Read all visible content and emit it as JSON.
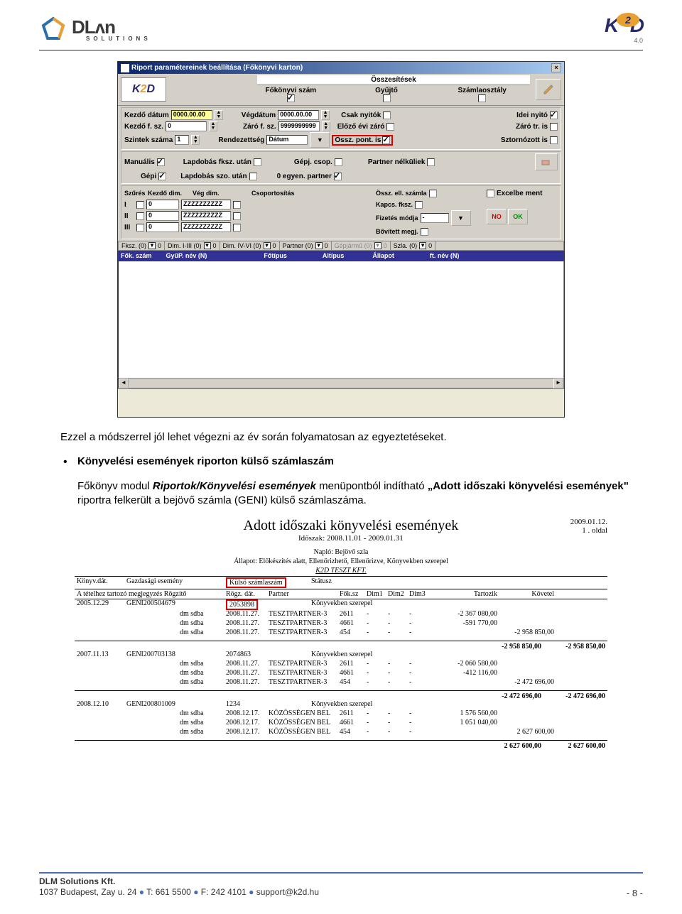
{
  "header": {
    "dlm_main": "DLʌn",
    "dlm_sub": "SOLUTIONS",
    "k2d": "K2D",
    "k2d_ver": "4.0"
  },
  "dialog": {
    "title": "Riport paramétereinek beállítása  (Főkönyvi karton)",
    "summary_title": "Összesítések",
    "col1": "Főkönyvi szám",
    "col2": "Gyűjtő",
    "col3": "Számlaosztály",
    "row1": {
      "l_kezdo_datum": "Kezdő dátum",
      "v_kezdo_datum": "0000.00.00",
      "l_vegdatum": "Végdátum",
      "v_vegdatum": "0000.00.00",
      "l_csak_nyitok": "Csak nyitók",
      "l_idei_nyito": "Idei nyitó"
    },
    "row2": {
      "l_kezdo_fsz": "Kezdő f. sz.",
      "v_kezdo_fsz": "0",
      "l_zaro_fsz": "Záró f. sz.",
      "v_zaro_fsz": "9999999999",
      "l_elozo_evi": "Előző évi záró",
      "l_zaro_tris": "Záró tr. is"
    },
    "row3": {
      "l_szintek": "Szintek száma",
      "v_szintek": "1",
      "l_rendezett": "Rendezettség",
      "v_rendezett": "Dátum",
      "l_ossz_pont": "Össz. pont. is",
      "l_sztornozott": "Sztornózott is"
    },
    "row4": {
      "l_manualis": "Manuális",
      "l_lapdobas_fksz": "Lapdobás fksz. után",
      "l_gepj_csop": "Gépj. csop.",
      "l_partner_nelk": "Partner nélküliek"
    },
    "row5": {
      "l_gepi": "Gépi",
      "l_lapdobas_szo": "Lapdobás szo. után",
      "l_egyen_partner": "0 egyen. partner"
    },
    "filter_header": {
      "c1": "Szűrés",
      "c2": "Kezdő dim.",
      "c3": "Vég dim.",
      "c4": "Csoportosítás",
      "c5": "Össz. ell. számla",
      "c6": "Kapcs. fksz.",
      "c7": "Fizetés módja",
      "c8": "Bővített megj."
    },
    "filter_rows": {
      "r1": "I",
      "r2": "II",
      "r3": "III",
      "zero": "0",
      "zzz": "ZZZZZZZZZZ"
    },
    "excelbe": "Excelbe ment",
    "fiz_moda": "-",
    "no": "NO",
    "ok": "OK",
    "collapse": {
      "c1": "Fksz. (0)",
      "c2": "Dim. I-III (0)",
      "c3": "Dim. IV-VI (0)",
      "c4": "Partner (0)",
      "c5": "Gépjármű (0)",
      "c6": "Szla. (0)",
      "zero": "0"
    },
    "grid_cols": {
      "c1": "Fők. szám",
      "c2": "GyűP. név (N)",
      "c3": "Főtípus",
      "c4": "Altípus",
      "c5": "Állapot",
      "c6": "ft. név (N)"
    }
  },
  "body": {
    "p1": "Ezzel a módszerrel jól lehet végezni az év során folyamatosan az egyeztetéseket.",
    "bullet_title": "Könyvelési események riporton külső számlaszám",
    "p2a": "Főkönyv modul ",
    "p2b": "Riportok/Könyvelési események",
    "p2c": " menüpontból indítható ",
    "p2d": "„Adott időszaki könyvelési események\"",
    "p2e": " riportra felkerült a bejövő számla (GENI) külső számlaszáma."
  },
  "report": {
    "title": "Adott időszaki könyvelési események",
    "date": "2009.01.12.",
    "page": "1 . oldal",
    "period": "Időszak: 2008.11.01 - 2009.01.31",
    "naplo": "Napló: Bejövő szla",
    "allapot": "Állapot: Előkészítés alatt, Ellenőrizhető, Ellenőrizve, Könyvekben szerepel",
    "company": "K2D TESZT KFT.",
    "hdr": {
      "konyv_dat": "Könyv.dát.",
      "gazd_es": "Gazdasági esemény",
      "kulso": "Külső számlaszám",
      "status": "Státusz",
      "tet_megj": "A tételhez tartozó megjegyzés  Rögzítő",
      "rogz_dat": "Rögz. dát.",
      "partner": "Partner",
      "fok": "Fők.sz",
      "dim1": "Dim1",
      "dim2": "Dim2",
      "dim3": "Dim3",
      "tartozik": "Tartozik",
      "kovetel": "Követel"
    },
    "groups": [
      {
        "date": "2005.12.29",
        "event": "GENI200504679",
        "kulso": "2053898",
        "status": "Könyvekben szerepel",
        "lines": [
          {
            "rog": "dm sdba",
            "dat": "2008.11.27.",
            "partner": "TESZTPARTNER-3",
            "fk": "2611",
            "d1": "-",
            "d2": "-",
            "d3": "-",
            "t": "-2 367 080,00",
            "k": ""
          },
          {
            "rog": "dm sdba",
            "dat": "2008.11.27.",
            "partner": "TESZTPARTNER-3",
            "fk": "4661",
            "d1": "-",
            "d2": "-",
            "d3": "-",
            "t": "-591 770,00",
            "k": ""
          },
          {
            "rog": "dm sdba",
            "dat": "2008.11.27.",
            "partner": "TESZTPARTNER-3",
            "fk": "454",
            "d1": "-",
            "d2": "-",
            "d3": "-",
            "t": "",
            "k": "-2 958 850,00"
          }
        ],
        "sub_t": "-2 958 850,00",
        "sub_k": "-2 958 850,00"
      },
      {
        "date": "2007.11.13",
        "event": "GENI200703138",
        "kulso": "2074863",
        "status": "Könyvekben szerepel",
        "lines": [
          {
            "rog": "dm sdba",
            "dat": "2008.11.27.",
            "partner": "TESZTPARTNER-3",
            "fk": "2611",
            "d1": "-",
            "d2": "-",
            "d3": "-",
            "t": "-2 060 580,00",
            "k": ""
          },
          {
            "rog": "dm sdba",
            "dat": "2008.11.27.",
            "partner": "TESZTPARTNER-3",
            "fk": "4661",
            "d1": "-",
            "d2": "-",
            "d3": "-",
            "t": "-412 116,00",
            "k": ""
          },
          {
            "rog": "dm sdba",
            "dat": "2008.11.27.",
            "partner": "TESZTPARTNER-3",
            "fk": "454",
            "d1": "-",
            "d2": "-",
            "d3": "-",
            "t": "",
            "k": "-2 472 696,00"
          }
        ],
        "sub_t": "-2 472 696,00",
        "sub_k": "-2 472 696,00"
      },
      {
        "date": "2008.12.10",
        "event": "GENI200801009",
        "kulso": "1234",
        "status": "Könyvekben szerepel",
        "lines": [
          {
            "rog": "dm sdba",
            "dat": "2008.12.17.",
            "partner": "KÖZÖSSÉGEN BEL",
            "fk": "2611",
            "d1": "-",
            "d2": "-",
            "d3": "-",
            "t": "1 576 560,00",
            "k": ""
          },
          {
            "rog": "dm sdba",
            "dat": "2008.12.17.",
            "partner": "KÖZÖSSÉGEN BEL",
            "fk": "4661",
            "d1": "-",
            "d2": "-",
            "d3": "-",
            "t": "1 051 040,00",
            "k": ""
          },
          {
            "rog": "dm sdba",
            "dat": "2008.12.17.",
            "partner": "KÖZÖSSÉGEN BEL",
            "fk": "454",
            "d1": "-",
            "d2": "-",
            "d3": "-",
            "t": "",
            "k": "2 627 600,00"
          }
        ],
        "sub_t": "2 627 600,00",
        "sub_k": "2 627 600,00"
      }
    ]
  },
  "footer": {
    "company": "DLM Solutions Kft.",
    "address": "1037 Budapest, Zay u. 24",
    "tel": "T: 661 5500",
    "fax": "F: 242 4101",
    "email": "support@k2d.hu",
    "page": "- 8 -",
    "sep": " ● "
  }
}
